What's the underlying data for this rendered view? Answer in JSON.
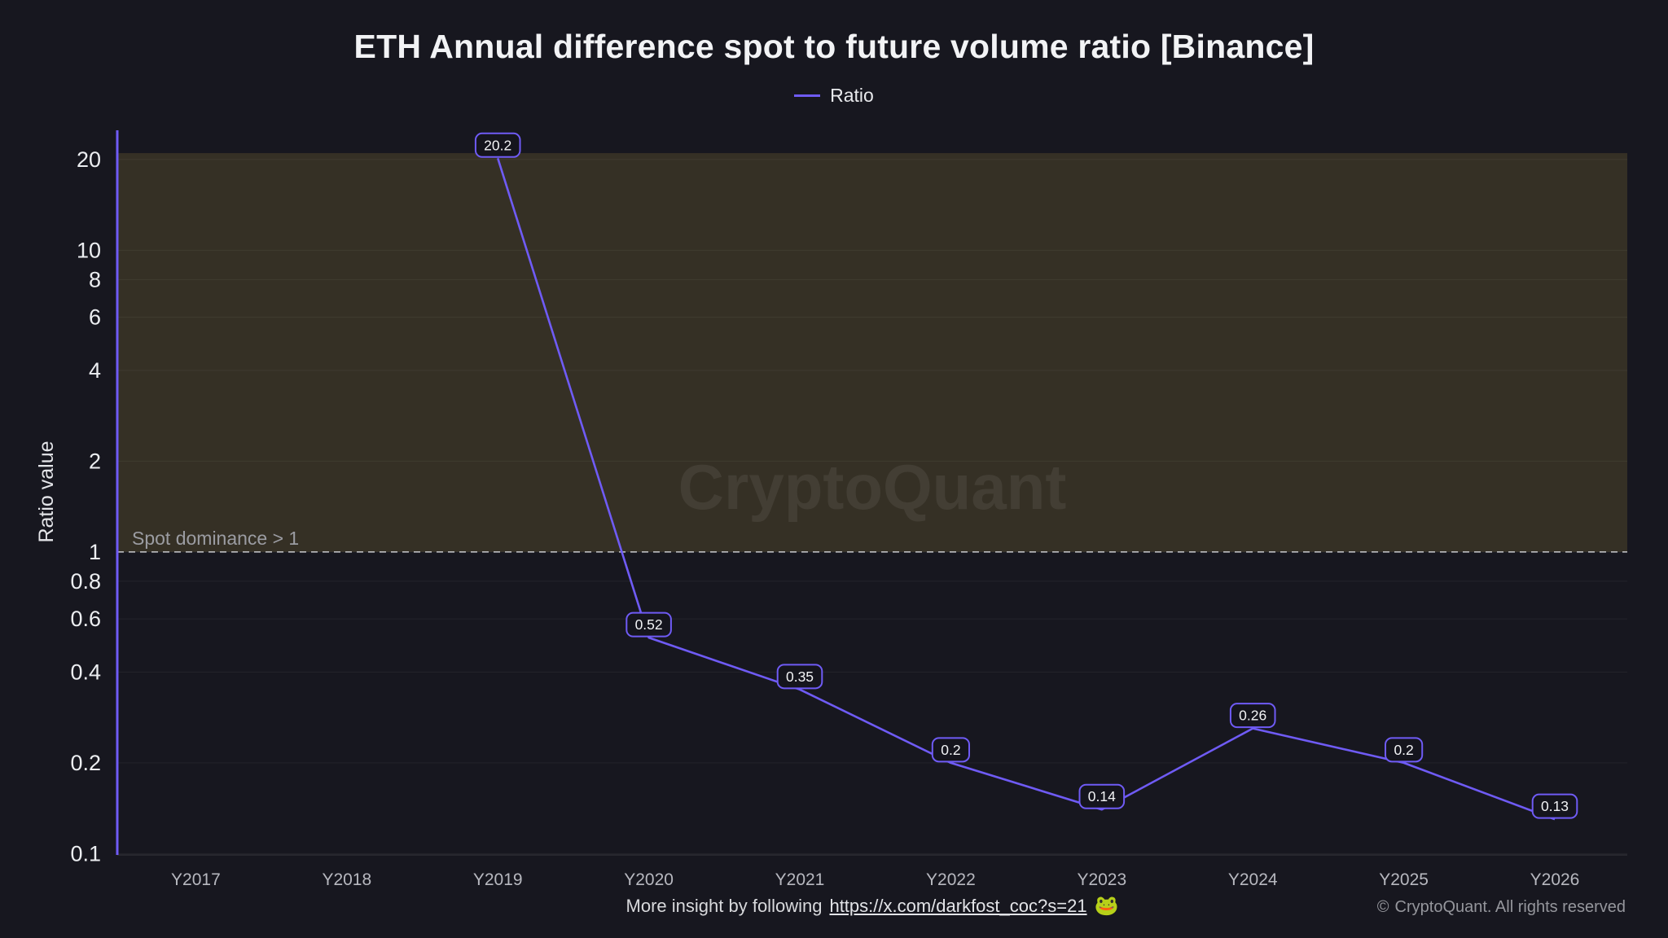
{
  "colors": {
    "background": "#17171f",
    "accent": "#6f5bf5"
  },
  "chart_data": {
    "type": "line",
    "title": "ETH Annual difference spot to future volume ratio [Binance]",
    "xlabel": "",
    "ylabel": "Ratio value",
    "yscale": "log",
    "ylim": [
      0.099,
      25
    ],
    "grid": true,
    "legend_position": "top",
    "categories": [
      "Y2017",
      "Y2018",
      "Y2019",
      "Y2020",
      "Y2021",
      "Y2022",
      "Y2023",
      "Y2024",
      "Y2025",
      "Y2026"
    ],
    "yticks": [
      20,
      10,
      8,
      6,
      4,
      2,
      1,
      0.8,
      0.6,
      0.4,
      0.2,
      0.1
    ],
    "series": [
      {
        "name": "Ratio",
        "color": "#6f5bf5",
        "values": [
          null,
          null,
          20.2,
          0.52,
          0.35,
          0.2,
          0.14,
          0.26,
          0.2,
          0.13
        ],
        "point_labels": [
          null,
          null,
          "20.2",
          "0.52",
          "0.35",
          "0.2",
          "0.14",
          "0.26",
          "0.2",
          "0.13"
        ]
      }
    ],
    "threshold": {
      "value": 1,
      "label": "Spot dominance > 1",
      "style": "dashed",
      "color": "#c9cacd"
    },
    "shaded_band": {
      "from": 1,
      "to": 21,
      "color": "rgba(150,128,58,0.24)"
    },
    "watermark": "CryptoQuant"
  },
  "footer": {
    "note_prefix": "More insight by following",
    "link": "https://x.com/darkfost_coc?s=21",
    "emoji": "🐸",
    "copyright_symbol": "©",
    "copyright": "CryptoQuant. All rights reserved"
  }
}
